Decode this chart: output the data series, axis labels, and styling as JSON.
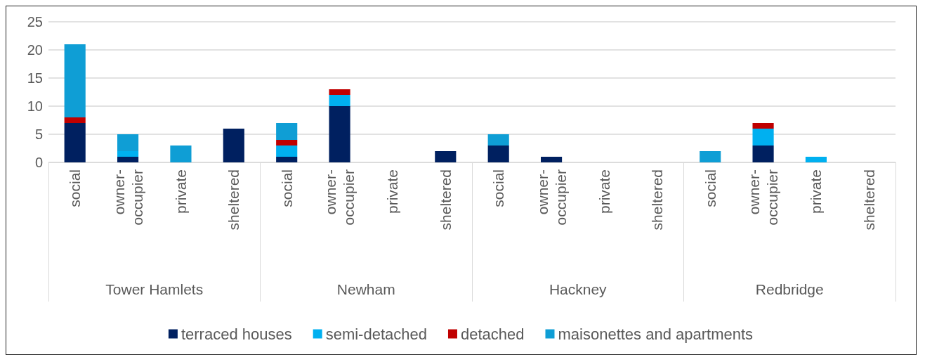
{
  "chart_data": {
    "type": "bar",
    "stacked": true,
    "categories": [
      "social",
      "owner-occupier",
      "private",
      "sheltered",
      "social",
      "owner-occupier",
      "private",
      "sheltered",
      "social",
      "owner-occupier",
      "private",
      "sheltered",
      "social",
      "owner-occupier",
      "private",
      "sheltered"
    ],
    "annotations": [
      "Tower Hamlets",
      "Newham",
      "Hackney",
      "Redbridge"
    ],
    "series": [
      {
        "name": "terraced houses",
        "color": "#002060",
        "values": [
          7,
          1,
          0,
          6,
          1,
          10,
          0,
          2,
          3,
          1,
          0,
          0,
          0,
          3,
          0,
          0
        ]
      },
      {
        "name": "semi-detached",
        "color": "#00b0f0",
        "values": [
          0,
          1,
          0,
          0,
          2,
          2,
          0,
          0,
          0,
          0,
          0,
          0,
          0,
          3,
          1,
          0
        ]
      },
      {
        "name": "detached",
        "color": "#c00000",
        "values": [
          1,
          0,
          0,
          0,
          1,
          1,
          0,
          0,
          0,
          0,
          0,
          0,
          0,
          1,
          0,
          0
        ]
      },
      {
        "name": "maisonettes and apartments",
        "color": "#0f9ed5",
        "values": [
          13,
          3,
          3,
          0,
          3,
          0,
          0,
          0,
          2,
          0,
          0,
          0,
          2,
          0,
          0,
          0
        ]
      }
    ],
    "ylim": [
      0,
      25
    ],
    "yticks": [
      0,
      5,
      10,
      15,
      20,
      25
    ],
    "grid": "y",
    "legend": "bottom"
  }
}
